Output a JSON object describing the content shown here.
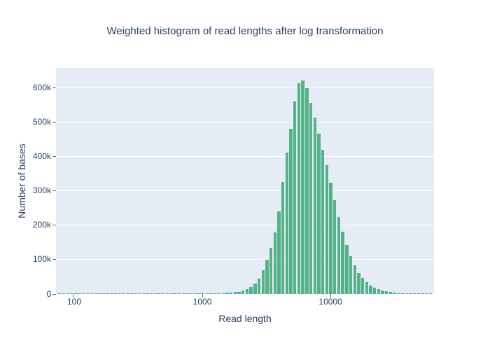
{
  "title": "Weighted histogram of read lengths after log transformation",
  "colors": {
    "bar": "#54b287",
    "plot_background": "#e5ecf6",
    "gridline": "#ffffff",
    "text": "#2a3f5f",
    "tick_mark": "#506784"
  },
  "xaxis": {
    "title": "Read length",
    "type": "log",
    "range_log10": [
      1.858,
      4.808
    ],
    "ticks": [
      {
        "label": "100",
        "value": 100
      },
      {
        "label": "1000",
        "value": 1000
      },
      {
        "label": "10000",
        "value": 10000
      }
    ]
  },
  "yaxis": {
    "title": "Number of bases",
    "range": [
      0,
      657000
    ],
    "ticks": [
      {
        "label": "0",
        "value": 0
      },
      {
        "label": "100k",
        "value": 100000
      },
      {
        "label": "200k",
        "value": 200000
      },
      {
        "label": "300k",
        "value": 300000
      },
      {
        "label": "400k",
        "value": 400000
      },
      {
        "label": "500k",
        "value": 500000
      },
      {
        "label": "600k",
        "value": 600000
      }
    ]
  },
  "chart_data": {
    "type": "bar",
    "title": "Weighted histogram of read lengths after log transformation",
    "xlabel": "Read length",
    "ylabel": "Number of bases",
    "x_scale": "log",
    "xlim": [
      72,
      64000
    ],
    "ylim": [
      0,
      657000
    ],
    "grid": true,
    "legend": false,
    "bar_color": "#54b287",
    "x": [
      77,
      83,
      89,
      95,
      103,
      110,
      118,
      127,
      137,
      147,
      158,
      169,
      182,
      196,
      210,
      226,
      242,
      260,
      280,
      300,
      323,
      347,
      373,
      400,
      430,
      462,
      496,
      533,
      573,
      615,
      661,
      710,
      763,
      819,
      880,
      945,
      1016,
      1091,
      1172,
      1259,
      1353,
      1453,
      1561,
      1677,
      1802,
      1935,
      2079,
      2234,
      2399,
      2578,
      2769,
      2975,
      3196,
      3433,
      3688,
      3962,
      4257,
      4573,
      4912,
      5277,
      5669,
      6090,
      6543,
      7029,
      7551,
      8112,
      8714,
      9362,
      10057,
      10804,
      11606,
      12469,
      13395,
      14390,
      15458,
      16607,
      17840,
      19165,
      20589,
      22118,
      23761,
      25526,
      27422,
      29459,
      31647,
      33998,
      36523,
      39236,
      42150,
      45281,
      48645,
      52258,
      56139,
      60309
    ],
    "y": [
      500,
      600,
      450,
      550,
      650,
      500,
      600,
      550,
      500,
      650,
      600,
      500,
      700,
      550,
      600,
      650,
      550,
      600,
      700,
      750,
      650,
      700,
      600,
      750,
      700,
      800,
      750,
      800,
      850,
      800,
      900,
      850,
      950,
      900,
      1000,
      1050,
      1150,
      1300,
      1500,
      2000,
      2500,
      3000,
      3500,
      4200,
      5200,
      7000,
      10000,
      14000,
      20000,
      30000,
      45000,
      70000,
      100000,
      135000,
      180000,
      240000,
      325000,
      410000,
      480000,
      560000,
      612000,
      620000,
      598000,
      556000,
      512000,
      466000,
      420000,
      374000,
      324000,
      272000,
      224000,
      182000,
      142000,
      110000,
      84000,
      61000,
      46000,
      34000,
      25000,
      18500,
      14000,
      10000,
      7500,
      5500,
      4000,
      3000,
      2400,
      1800,
      1400,
      1100,
      900,
      700,
      600,
      500
    ]
  }
}
